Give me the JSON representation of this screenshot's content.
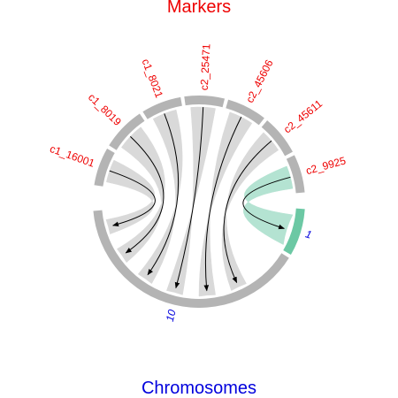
{
  "title_top": "Markers",
  "title_bottom": "Chromosomes",
  "colors": {
    "marker_text": "#ee0000",
    "chromosome_text": "#0000dd",
    "segment_grey": "#b4b4b4",
    "ribbon_grey": "#d9d9d9",
    "highlight": "#6cc8a4",
    "highlight_ribbon": "#b4e3d2",
    "link": "#000000"
  },
  "markers": [
    {
      "label": "c1_16001",
      "highlighted": false
    },
    {
      "label": "c1_8019",
      "highlighted": false
    },
    {
      "label": "c1_8021",
      "highlighted": false
    },
    {
      "label": "c2_25471",
      "highlighted": false
    },
    {
      "label": "c2_45606",
      "highlighted": false
    },
    {
      "label": "c2_45611",
      "highlighted": false
    },
    {
      "label": "c2_9925",
      "highlighted": true
    }
  ],
  "chromosomes": [
    {
      "label": "1",
      "highlighted": true
    },
    {
      "label": "10",
      "highlighted": false
    }
  ]
}
